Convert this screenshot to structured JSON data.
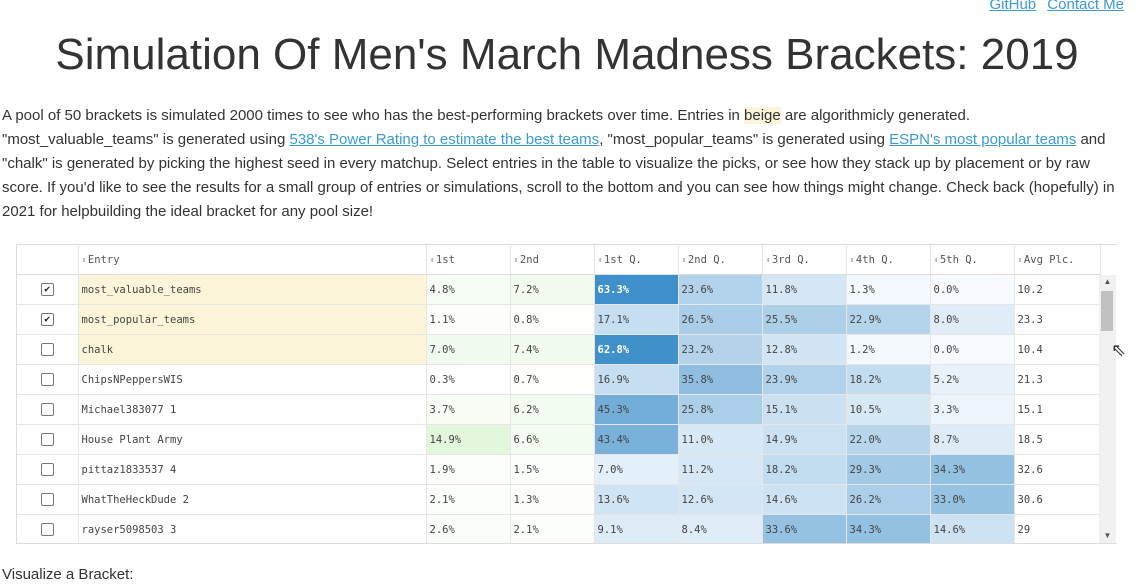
{
  "nav": {
    "github": "GitHub",
    "contact": "Contact Me"
  },
  "title": "Simulation Of Men's March Madness Brackets: 2019",
  "intro": {
    "p1": "A pool of 50 brackets is simulated 2000 times to see who has the best-performing brackets over time. Entries in ",
    "beige": "beige",
    "p2": " are algorithmicly generated. \"most_valuable_teams\" is generated using ",
    "link1": "538's Power Rating to estimate the best teams",
    "p3": ", \"most_popular_teams\" is generated using ",
    "link2": "ESPN's most popular teams",
    "p4": " and \"chalk\" is generated by picking the highest seed in every matchup. Select entries in the table to visualize the picks, or see how they stack up by placement or by raw score. If you'd like to see the results for a small group of entries or simulations, scroll to the bottom and you can see how things might change. Check back (hopefully) in 2021 for helpbuilding the ideal bracket for any pool size!"
  },
  "table": {
    "headers": [
      "Entry",
      "1st",
      "2nd",
      "1st Q.",
      "2nd Q.",
      "3rd Q.",
      "4th Q.",
      "5th Q.",
      "Avg Plc."
    ],
    "rows": [
      {
        "checked": true,
        "beige": true,
        "cells": [
          "most_valuable_teams",
          "4.8%",
          "7.2%",
          "63.3%",
          "23.6%",
          "11.8%",
          "1.3%",
          "0.0%",
          "10.2"
        ]
      },
      {
        "checked": true,
        "beige": true,
        "cells": [
          "most_popular_teams",
          "1.1%",
          "0.8%",
          "17.1%",
          "26.5%",
          "25.5%",
          "22.9%",
          "8.0%",
          "23.3"
        ]
      },
      {
        "checked": false,
        "beige": true,
        "cells": [
          "chalk",
          "7.0%",
          "7.4%",
          "62.8%",
          "23.2%",
          "12.8%",
          "1.2%",
          "0.0%",
          "10.4"
        ]
      },
      {
        "checked": false,
        "beige": false,
        "cells": [
          "ChipsNPeppersWIS",
          "0.3%",
          "0.7%",
          "16.9%",
          "35.8%",
          "23.9%",
          "18.2%",
          "5.2%",
          "21.3"
        ]
      },
      {
        "checked": false,
        "beige": false,
        "cells": [
          "Michael383077 1",
          "3.7%",
          "6.2%",
          "45.3%",
          "25.8%",
          "15.1%",
          "10.5%",
          "3.3%",
          "15.1"
        ]
      },
      {
        "checked": false,
        "beige": false,
        "cells": [
          "House Plant Army",
          "14.9%",
          "6.6%",
          "43.4%",
          "11.0%",
          "14.9%",
          "22.0%",
          "8.7%",
          "18.5"
        ]
      },
      {
        "checked": false,
        "beige": false,
        "cells": [
          "pittaz1833537 4",
          "1.9%",
          "1.5%",
          "7.0%",
          "11.2%",
          "18.2%",
          "29.3%",
          "34.3%",
          "32.6"
        ]
      },
      {
        "checked": false,
        "beige": false,
        "cells": [
          "WhatTheHeckDude 2",
          "2.1%",
          "1.3%",
          "13.6%",
          "12.6%",
          "14.6%",
          "26.2%",
          "33.0%",
          "30.6"
        ]
      },
      {
        "checked": false,
        "beige": false,
        "cells": [
          "rayser5098503 3",
          "2.6%",
          "2.1%",
          "9.1%",
          "8.4%",
          "33.6%",
          "34.3%",
          "14.6%",
          "29"
        ]
      }
    ]
  },
  "colors": {
    "beige": "#fdf5d9",
    "green_max": "#e3f2dc",
    "blue_max": "#3d8ec9"
  },
  "visualize_label": "Visualize a Bracket:"
}
